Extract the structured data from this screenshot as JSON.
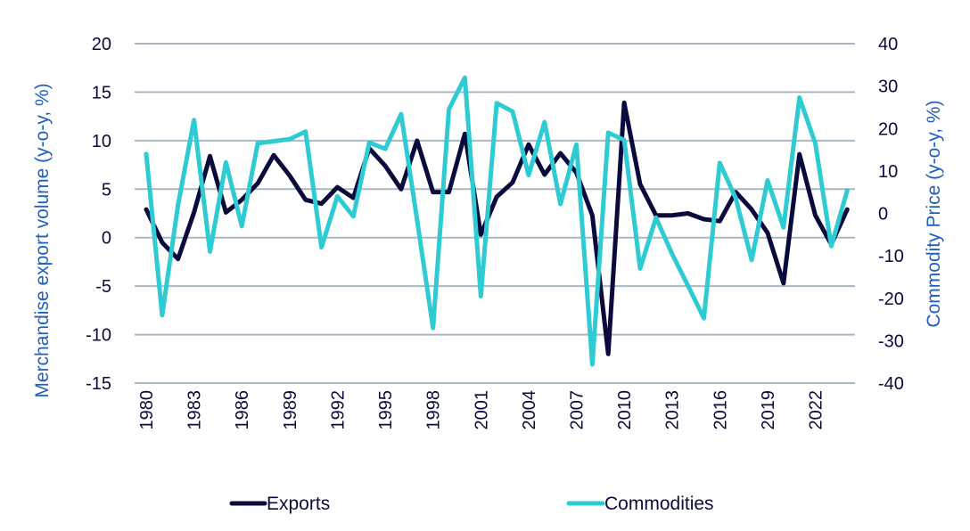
{
  "chart_data": {
    "type": "line",
    "title": "",
    "xlabel": "",
    "ylabel": "Merchandise export volume (y-o-y, %)",
    "y2label": "Commodity Price (y-o-y, %)",
    "ylim": [
      -15,
      20
    ],
    "y2lim": [
      -40,
      40
    ],
    "yticks": [
      "20",
      "15",
      "10",
      "5",
      "0",
      "-5",
      "-10",
      "-15"
    ],
    "y2ticks": [
      "40",
      "30",
      "20",
      "10",
      "0",
      "-10",
      "-20",
      "-30",
      "-40"
    ],
    "xtick_labels": [
      "1980",
      "1983",
      "1986",
      "1989",
      "1992",
      "1995",
      "1998",
      "2001",
      "2004",
      "2007",
      "2010",
      "2013",
      "2016",
      "2019",
      "2022"
    ],
    "grid": true,
    "legend_position": "bottom",
    "x": [
      1980,
      1981,
      1982,
      1983,
      1984,
      1985,
      1986,
      1987,
      1988,
      1989,
      1990,
      1991,
      1992,
      1993,
      1994,
      1995,
      1996,
      1997,
      1998,
      1999,
      2000,
      2001,
      2002,
      2003,
      2004,
      2005,
      2006,
      2007,
      2008,
      2009,
      2010,
      2011,
      2012,
      2013,
      2014,
      2015,
      2016,
      2017,
      2018,
      2019,
      2020,
      2021,
      2022,
      2023,
      2024
    ],
    "series": [
      {
        "name": "Exports",
        "axis": "left",
        "color": "#0a0a3c",
        "values": [
          2.9,
          -0.5,
          -2.2,
          2.6,
          8.4,
          2.6,
          3.9,
          5.6,
          8.5,
          6.4,
          3.9,
          3.5,
          5.2,
          4.1,
          9.2,
          7.4,
          5.0,
          10.0,
          4.7,
          4.7,
          10.7,
          0.3,
          4.2,
          5.7,
          9.6,
          6.5,
          8.7,
          6.7,
          2.3,
          -12.0,
          13.9,
          5.5,
          2.3,
          2.3,
          2.5,
          1.9,
          1.7,
          4.7,
          2.9,
          0.5,
          -4.7,
          8.6,
          2.3,
          -0.7,
          2.9
        ]
      },
      {
        "name": "Commodities",
        "axis": "right",
        "color": "#2ecbd3",
        "values": [
          14,
          -24,
          2,
          22,
          -9,
          12,
          -3,
          16.5,
          17,
          17.5,
          19.3,
          -8,
          4,
          -0.7,
          16.7,
          15.2,
          23.4,
          -1.5,
          -27,
          24.5,
          32,
          -19.5,
          26,
          24,
          9,
          21.5,
          2.2,
          16.2,
          -35.6,
          19,
          17.3,
          -13,
          -1,
          -9.5,
          -17,
          -24.7,
          11.9,
          3.6,
          -11,
          7.8,
          -3.3,
          27.3,
          16.5,
          -7.7,
          5.4
        ]
      }
    ]
  }
}
